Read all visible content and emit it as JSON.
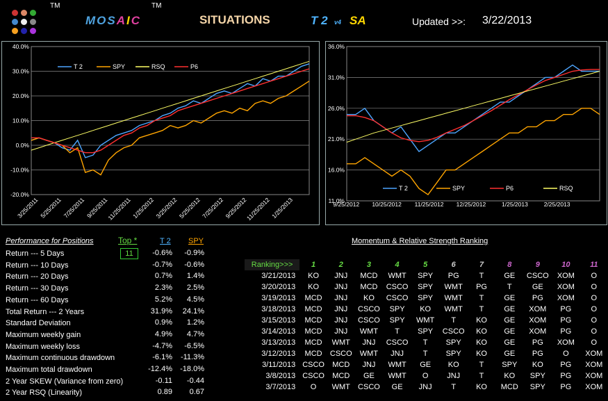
{
  "header": {
    "tm1": "TM",
    "tm2": "TM",
    "mosaic": "MOSAIC",
    "mosaic_letters": [
      {
        "c": "M",
        "color": "#4fa3e0"
      },
      {
        "c": "O",
        "color": "#4fa3e0"
      },
      {
        "c": "S",
        "color": "#4fa3e0"
      },
      {
        "c": "A",
        "color": "#e040a0"
      },
      {
        "c": "I",
        "color": "#ffd700"
      },
      {
        "c": "C",
        "color": "#e040a0"
      }
    ],
    "situations": "SITUATIONS",
    "t2": "T 2",
    "v4": "v4",
    "sa": "SA",
    "updated_label": "Updated >>:",
    "updated_date": "3/22/2013"
  },
  "logo_dots": [
    "#c33",
    "#d86",
    "#3a3",
    "#48c",
    "#eee",
    "#888",
    "#f6a020",
    "#22a",
    "#a3d"
  ],
  "chart_data": [
    {
      "type": "line",
      "x_tick_labels": [
        "3/25/2011",
        "5/25/2011",
        "7/25/2011",
        "9/25/2011",
        "11/25/2011",
        "1/25/2012",
        "3/25/2012",
        "5/25/2012",
        "7/25/2012",
        "9/25/2012",
        "11/25/2012",
        "1/25/2013"
      ],
      "y_tick_labels": [
        "-20.0%",
        "-10.0%",
        "0.0%",
        "10.0%",
        "20.0%",
        "30.0%",
        "40.0%"
      ],
      "ylim": [
        -20,
        40
      ],
      "legend": [
        "T 2",
        "SPY",
        "RSQ",
        "P6"
      ],
      "legend_position": "top-left",
      "grid": true,
      "series": [
        {
          "name": "T 2",
          "color": "#4da6ff",
          "values": [
            2,
            3,
            2,
            1,
            -1,
            -2,
            2,
            -5,
            -4,
            0,
            2,
            4,
            5,
            6,
            8,
            9,
            10,
            12,
            13,
            15,
            16,
            18,
            17,
            19,
            21,
            22,
            21,
            23,
            25,
            24,
            27,
            26,
            28,
            28,
            30,
            32,
            33
          ]
        },
        {
          "name": "SPY",
          "color": "#ffa500",
          "values": [
            2,
            3,
            2,
            1,
            0,
            -3,
            -1,
            -11,
            -10,
            -12,
            -6,
            -3,
            -1,
            0,
            3,
            4,
            5,
            6,
            8,
            7,
            8,
            10,
            9,
            11,
            13,
            14,
            13,
            15,
            14,
            17,
            18,
            17,
            19,
            20,
            22,
            24,
            26
          ]
        },
        {
          "name": "RSQ",
          "color": "#ffff66",
          "values": [
            -2,
            -1,
            0,
            1,
            2,
            3,
            4,
            5,
            6,
            7,
            8,
            9,
            10,
            11,
            12,
            13,
            14,
            15,
            16,
            17,
            18,
            19,
            20,
            21,
            22,
            23,
            24,
            25,
            26,
            27,
            28,
            29,
            30,
            31,
            32,
            33,
            34
          ]
        },
        {
          "name": "P6",
          "color": "#ff3030",
          "values": [
            3,
            3,
            2,
            1,
            0,
            -1,
            -2,
            -3,
            -3,
            -2,
            0,
            2,
            4,
            5,
            7,
            8,
            10,
            11,
            12,
            14,
            15,
            16,
            17,
            18,
            19,
            20,
            21,
            22,
            23,
            24,
            25,
            26,
            27,
            28,
            29,
            30,
            31
          ]
        }
      ]
    },
    {
      "type": "line",
      "x_tick_labels": [
        "9/25/2012",
        "10/25/2012",
        "11/25/2012",
        "12/25/2012",
        "1/25/2013",
        "2/25/2013"
      ],
      "y_tick_labels": [
        "11.0%",
        "16.0%",
        "21.0%",
        "26.0%",
        "31.0%",
        "36.0%"
      ],
      "ylim": [
        11,
        36
      ],
      "legend": [
        "T 2",
        "SPY",
        "P6",
        "RSQ"
      ],
      "legend_position": "bottom",
      "grid": true,
      "series": [
        {
          "name": "T 2",
          "color": "#4da6ff",
          "values": [
            25,
            25,
            26,
            24,
            23,
            22,
            23,
            21,
            19,
            20,
            21,
            22,
            22,
            23,
            24,
            25,
            26,
            27,
            27,
            28,
            29,
            30,
            31,
            31,
            32,
            33,
            32,
            32,
            32
          ]
        },
        {
          "name": "SPY",
          "color": "#ffa500",
          "values": [
            17,
            17,
            18,
            17,
            16,
            15,
            16,
            15,
            13,
            12,
            14,
            16,
            16,
            17,
            18,
            19,
            20,
            21,
            22,
            22,
            23,
            23,
            24,
            24,
            25,
            25,
            26,
            26,
            25
          ]
        },
        {
          "name": "P6",
          "color": "#ff3030",
          "values": [
            24.8,
            24.8,
            24.5,
            24,
            23,
            22,
            21.2,
            20.8,
            20.6,
            20.8,
            21.3,
            22,
            22.6,
            23.2,
            24,
            24.8,
            25.6,
            26.5,
            27.4,
            28.2,
            29,
            29.8,
            30.5,
            31,
            31.5,
            32,
            32.2,
            32.3,
            32.3
          ]
        },
        {
          "name": "RSQ",
          "color": "#ffff66",
          "values": [
            20.5,
            21,
            21.5,
            22,
            22.4,
            22.8,
            23.2,
            23.6,
            24,
            24.4,
            24.8,
            25.2,
            25.6,
            26,
            26.4,
            26.8,
            27.2,
            27.6,
            28,
            28.4,
            28.8,
            29.2,
            29.6,
            30,
            30.4,
            30.8,
            31.2,
            31.6,
            32
          ]
        }
      ]
    }
  ],
  "performance": {
    "title": "Performance for Positions",
    "top_label": "Top *",
    "top_value": "11",
    "col_t2": "T 2",
    "col_spy": "SPY",
    "rows": [
      {
        "label": "Return --- 5 Days",
        "t2": "-0.6%",
        "spy": "-0.9%"
      },
      {
        "label": "Return --- 10 Days",
        "t2": "-0.7%",
        "spy": "-0.6%"
      },
      {
        "label": "Return --- 20 Days",
        "t2": "0.7%",
        "spy": "1.4%"
      },
      {
        "label": "Return --- 30 Days",
        "t2": "2.3%",
        "spy": "2.5%"
      },
      {
        "label": "Return --- 60 Days",
        "t2": "5.2%",
        "spy": "4.5%"
      },
      {
        "label": "Total Return --- 2 Years",
        "t2": "31.9%",
        "spy": "24.1%"
      },
      {
        "label": "Standard Deviation",
        "t2": "0.9%",
        "spy": "1.2%"
      },
      {
        "label": "Maximum weekly gain",
        "t2": "4.9%",
        "spy": "4.7%"
      },
      {
        "label": "Maximum weekly loss",
        "t2": "-4.7%",
        "spy": "-6.5%"
      },
      {
        "label": "Maximum continuous drawdown",
        "t2": "-6.1%",
        "spy": "-11.3%"
      },
      {
        "label": "Maximum total drawdown",
        "t2": "-12.4%",
        "spy": "-18.0%"
      },
      {
        "label": "2 Year SKEW  (Variance from zero)",
        "t2": "-0.11",
        "spy": "-0.44"
      },
      {
        "label": "2 Year RSQ  (Linearity)",
        "t2": "0.89",
        "spy": "0.67"
      }
    ]
  },
  "ranking": {
    "title": "Momentum & Relative Strength Ranking",
    "header_label": "Ranking>>>",
    "columns": [
      "1",
      "2",
      "3",
      "4",
      "5",
      "6",
      "7",
      "8",
      "9",
      "10",
      "11"
    ],
    "column_colors": [
      "#66dd44",
      "#66dd44",
      "#66dd44",
      "#66dd44",
      "#66dd44",
      "#cccccc",
      "#cccccc",
      "#cc66cc",
      "#cc66cc",
      "#cc66cc",
      "#cc66cc"
    ],
    "rows": [
      {
        "date": "3/21/2013",
        "v": [
          "KO",
          "JNJ",
          "MCD",
          "WMT",
          "SPY",
          "PG",
          "T",
          "GE",
          "CSCO",
          "XOM",
          "O"
        ]
      },
      {
        "date": "3/20/2013",
        "v": [
          "KO",
          "JNJ",
          "MCD",
          "CSCO",
          "SPY",
          "WMT",
          "PG",
          "T",
          "GE",
          "XOM",
          "O"
        ]
      },
      {
        "date": "3/19/2013",
        "v": [
          "MCD",
          "JNJ",
          "KO",
          "CSCO",
          "SPY",
          "WMT",
          "T",
          "GE",
          "PG",
          "XOM",
          "O"
        ]
      },
      {
        "date": "3/18/2013",
        "v": [
          "MCD",
          "JNJ",
          "CSCO",
          "SPY",
          "KO",
          "WMT",
          "T",
          "GE",
          "XOM",
          "PG",
          "O"
        ]
      },
      {
        "date": "3/15/2013",
        "v": [
          "MCD",
          "JNJ",
          "CSCO",
          "SPY",
          "WMT",
          "T",
          "KO",
          "GE",
          "XOM",
          "PG",
          "O"
        ]
      },
      {
        "date": "3/14/2013",
        "v": [
          "MCD",
          "JNJ",
          "WMT",
          "T",
          "SPY",
          "CSCO",
          "KO",
          "GE",
          "XOM",
          "PG",
          "O"
        ]
      },
      {
        "date": "3/13/2013",
        "v": [
          "MCD",
          "WMT",
          "JNJ",
          "CSCO",
          "T",
          "SPY",
          "KO",
          "GE",
          "PG",
          "XOM",
          "O"
        ]
      },
      {
        "date": "3/12/2013",
        "v": [
          "MCD",
          "CSCO",
          "WMT",
          "JNJ",
          "T",
          "SPY",
          "KO",
          "GE",
          "PG",
          "O",
          "XOM"
        ]
      },
      {
        "date": "3/11/2013",
        "v": [
          "CSCO",
          "MCD",
          "JNJ",
          "WMT",
          "GE",
          "KO",
          "T",
          "SPY",
          "KO",
          "PG",
          "XOM"
        ]
      },
      {
        "date": "3/8/2013",
        "v": [
          "CSCO",
          "MCD",
          "GE",
          "WMT",
          "O",
          "JNJ",
          "T",
          "KO",
          "SPY",
          "PG",
          "XOM"
        ]
      },
      {
        "date": "3/7/2013",
        "v": [
          "O",
          "WMT",
          "CSCO",
          "GE",
          "JNJ",
          "T",
          "KO",
          "MCD",
          "SPY",
          "PG",
          "XOM"
        ]
      }
    ]
  }
}
